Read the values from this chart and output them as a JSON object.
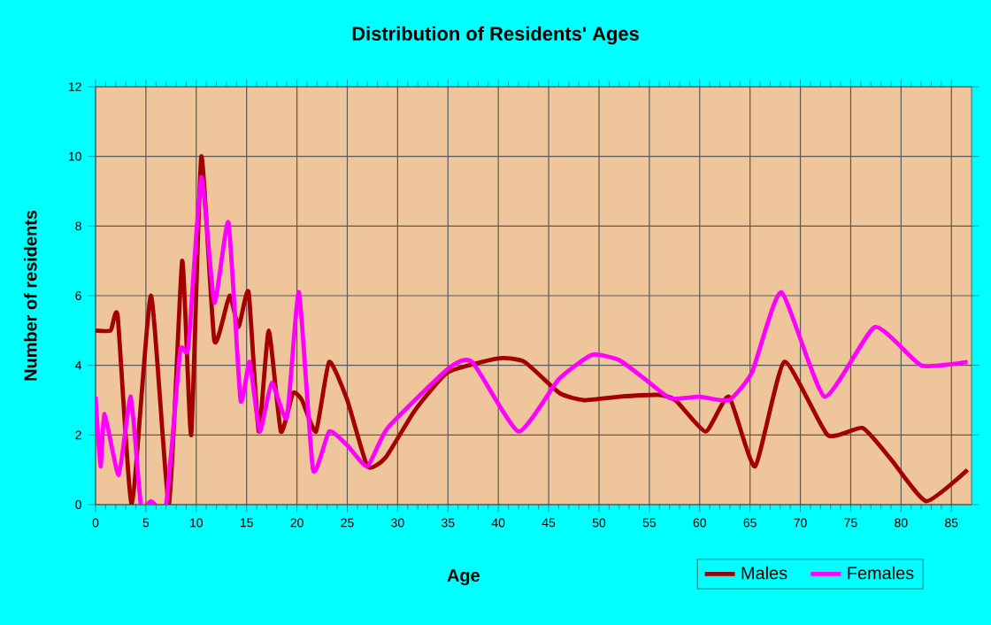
{
  "chart_data": {
    "type": "line",
    "title": "Distribution of Residents' Ages",
    "xlabel": "Age",
    "ylabel": "Number of residents",
    "xlim": [
      0,
      87
    ],
    "ylim": [
      0,
      12
    ],
    "xticks": [
      0,
      5,
      10,
      15,
      20,
      25,
      30,
      35,
      40,
      45,
      50,
      55,
      60,
      65,
      70,
      75,
      80,
      85
    ],
    "yticks": [
      0,
      2,
      4,
      6,
      8,
      10,
      12
    ],
    "grid": true,
    "legend": "bottom right",
    "series": [
      {
        "name": "Males",
        "color": "#a30000",
        "x": [
          0,
          1.5,
          2.2,
          3.6,
          5.5,
          7.3,
          8.6,
          9.5,
          10.5,
          11.8,
          13.3,
          14.2,
          15.2,
          16.2,
          17.2,
          18.4,
          19.6,
          20.5,
          21.9,
          23.2,
          25,
          27,
          28.8,
          31.7,
          35,
          40,
          42.6,
          46.1,
          48.5,
          52,
          55.9,
          57.6,
          60.6,
          62.9,
          65.5,
          68.4,
          72.7,
          76.2,
          79,
          82.5,
          86.6
        ],
        "values": [
          5,
          5,
          5.4,
          0,
          6,
          0,
          7,
          2,
          10,
          4.7,
          6,
          5.1,
          6.1,
          2.1,
          5,
          2.1,
          3.2,
          3,
          2.1,
          4.1,
          3,
          1.1,
          1.35,
          2.7,
          3.8,
          4.2,
          4.1,
          3.2,
          3,
          3.1,
          3.15,
          3,
          2.1,
          3.1,
          1.1,
          4.1,
          2,
          2.2,
          1.3,
          0.1,
          1
        ]
      },
      {
        "name": "Females",
        "color": "#ff00ff",
        "x": [
          0,
          0.5,
          0.9,
          2.3,
          3.5,
          4.5,
          5.5,
          7,
          8.4,
          9.2,
          10.5,
          11.8,
          13.2,
          14.4,
          15.3,
          16.3,
          17.5,
          19,
          20.2,
          21.6,
          23.2,
          25,
          27,
          29,
          35,
          37.4,
          42,
          46,
          49.3,
          52,
          54.8,
          57.1,
          60,
          62.9,
          65.2,
          68.1,
          72.4,
          77.4,
          82,
          86.6
        ],
        "values": [
          3.1,
          1.1,
          2.6,
          0.85,
          3.1,
          0,
          0.1,
          0,
          4.4,
          4.5,
          9.4,
          5.8,
          8.1,
          3,
          4.1,
          2.1,
          3.5,
          2.5,
          6.1,
          1,
          2.1,
          1.7,
          1.1,
          2.2,
          3.9,
          4.1,
          2.1,
          3.6,
          4.3,
          4.15,
          3.55,
          3.05,
          3.1,
          3,
          3.8,
          6.1,
          3.1,
          5.1,
          4,
          4.1
        ]
      }
    ]
  }
}
